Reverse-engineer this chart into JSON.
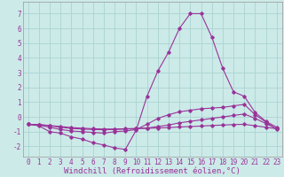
{
  "xlabel": "Windchill (Refroidissement éolien,°C)",
  "background_color": "#cceae8",
  "grid_color": "#aad4d2",
  "line_color": "#993399",
  "xlim": [
    -0.5,
    23.5
  ],
  "ylim": [
    -2.7,
    7.8
  ],
  "yticks": [
    -2,
    -1,
    0,
    1,
    2,
    3,
    4,
    5,
    6,
    7
  ],
  "xticks": [
    0,
    1,
    2,
    3,
    4,
    5,
    6,
    7,
    8,
    9,
    10,
    11,
    12,
    13,
    14,
    15,
    16,
    17,
    18,
    19,
    20,
    21,
    22,
    23
  ],
  "lines": [
    [
      -0.5,
      -0.6,
      -1.0,
      -1.1,
      -1.35,
      -1.5,
      -1.75,
      -1.9,
      -2.1,
      -2.2,
      -0.9,
      1.4,
      3.1,
      4.4,
      6.0,
      7.0,
      7.0,
      5.4,
      3.3,
      1.7,
      1.4,
      0.3,
      -0.3,
      -0.7
    ],
    [
      -0.5,
      -0.55,
      -0.7,
      -0.85,
      -0.95,
      -1.0,
      -1.05,
      -1.1,
      -1.0,
      -0.95,
      -0.85,
      -0.5,
      -0.1,
      0.15,
      0.35,
      0.45,
      0.55,
      0.6,
      0.65,
      0.75,
      0.85,
      0.15,
      -0.35,
      -0.85
    ],
    [
      -0.5,
      -0.52,
      -0.6,
      -0.7,
      -0.78,
      -0.82,
      -0.85,
      -0.87,
      -0.85,
      -0.82,
      -0.8,
      -0.75,
      -0.65,
      -0.55,
      -0.4,
      -0.3,
      -0.2,
      -0.1,
      0.0,
      0.1,
      0.2,
      -0.1,
      -0.45,
      -0.8
    ],
    [
      -0.5,
      -0.52,
      -0.58,
      -0.65,
      -0.72,
      -0.76,
      -0.8,
      -0.82,
      -0.82,
      -0.8,
      -0.78,
      -0.77,
      -0.75,
      -0.72,
      -0.68,
      -0.65,
      -0.62,
      -0.58,
      -0.55,
      -0.52,
      -0.5,
      -0.6,
      -0.7,
      -0.8
    ]
  ],
  "xlabel_fontsize": 6.5,
  "tick_fontsize": 5.5,
  "figwidth": 3.2,
  "figheight": 2.0,
  "dpi": 100
}
